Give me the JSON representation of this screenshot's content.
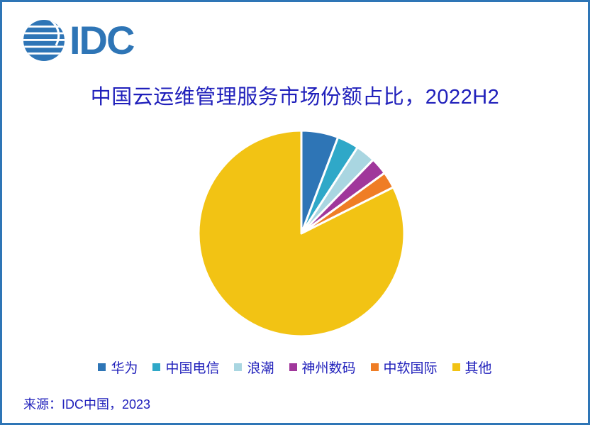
{
  "logo": {
    "text": "IDC"
  },
  "header": {
    "title": "中国云运维管理服务市场份额占比，2022H2"
  },
  "chart_data": {
    "type": "pie",
    "title": "中国云运维管理服务市场份额占比，2022H2",
    "categories": [
      "华为",
      "中国电信",
      "浪潮",
      "神州数码",
      "中软国际",
      "其他"
    ],
    "values": [
      5.8,
      3.4,
      3.1,
      2.7,
      2.6,
      82.4
    ],
    "colors": [
      "#2E75B6",
      "#2FA8C8",
      "#A9D6E1",
      "#A0379B",
      "#EF7D25",
      "#F2C314"
    ],
    "start_angle": 0,
    "direction": "clockwise",
    "legend_position": "bottom",
    "slice_border_color": "#FFFFFF"
  },
  "footer": {
    "source": "来源：IDC中国，2023"
  },
  "theme": {
    "text_color": "#2020BB",
    "brand_color": "#2E75B6",
    "border_color": "#2E75B6",
    "background": "#FFFFFF"
  }
}
